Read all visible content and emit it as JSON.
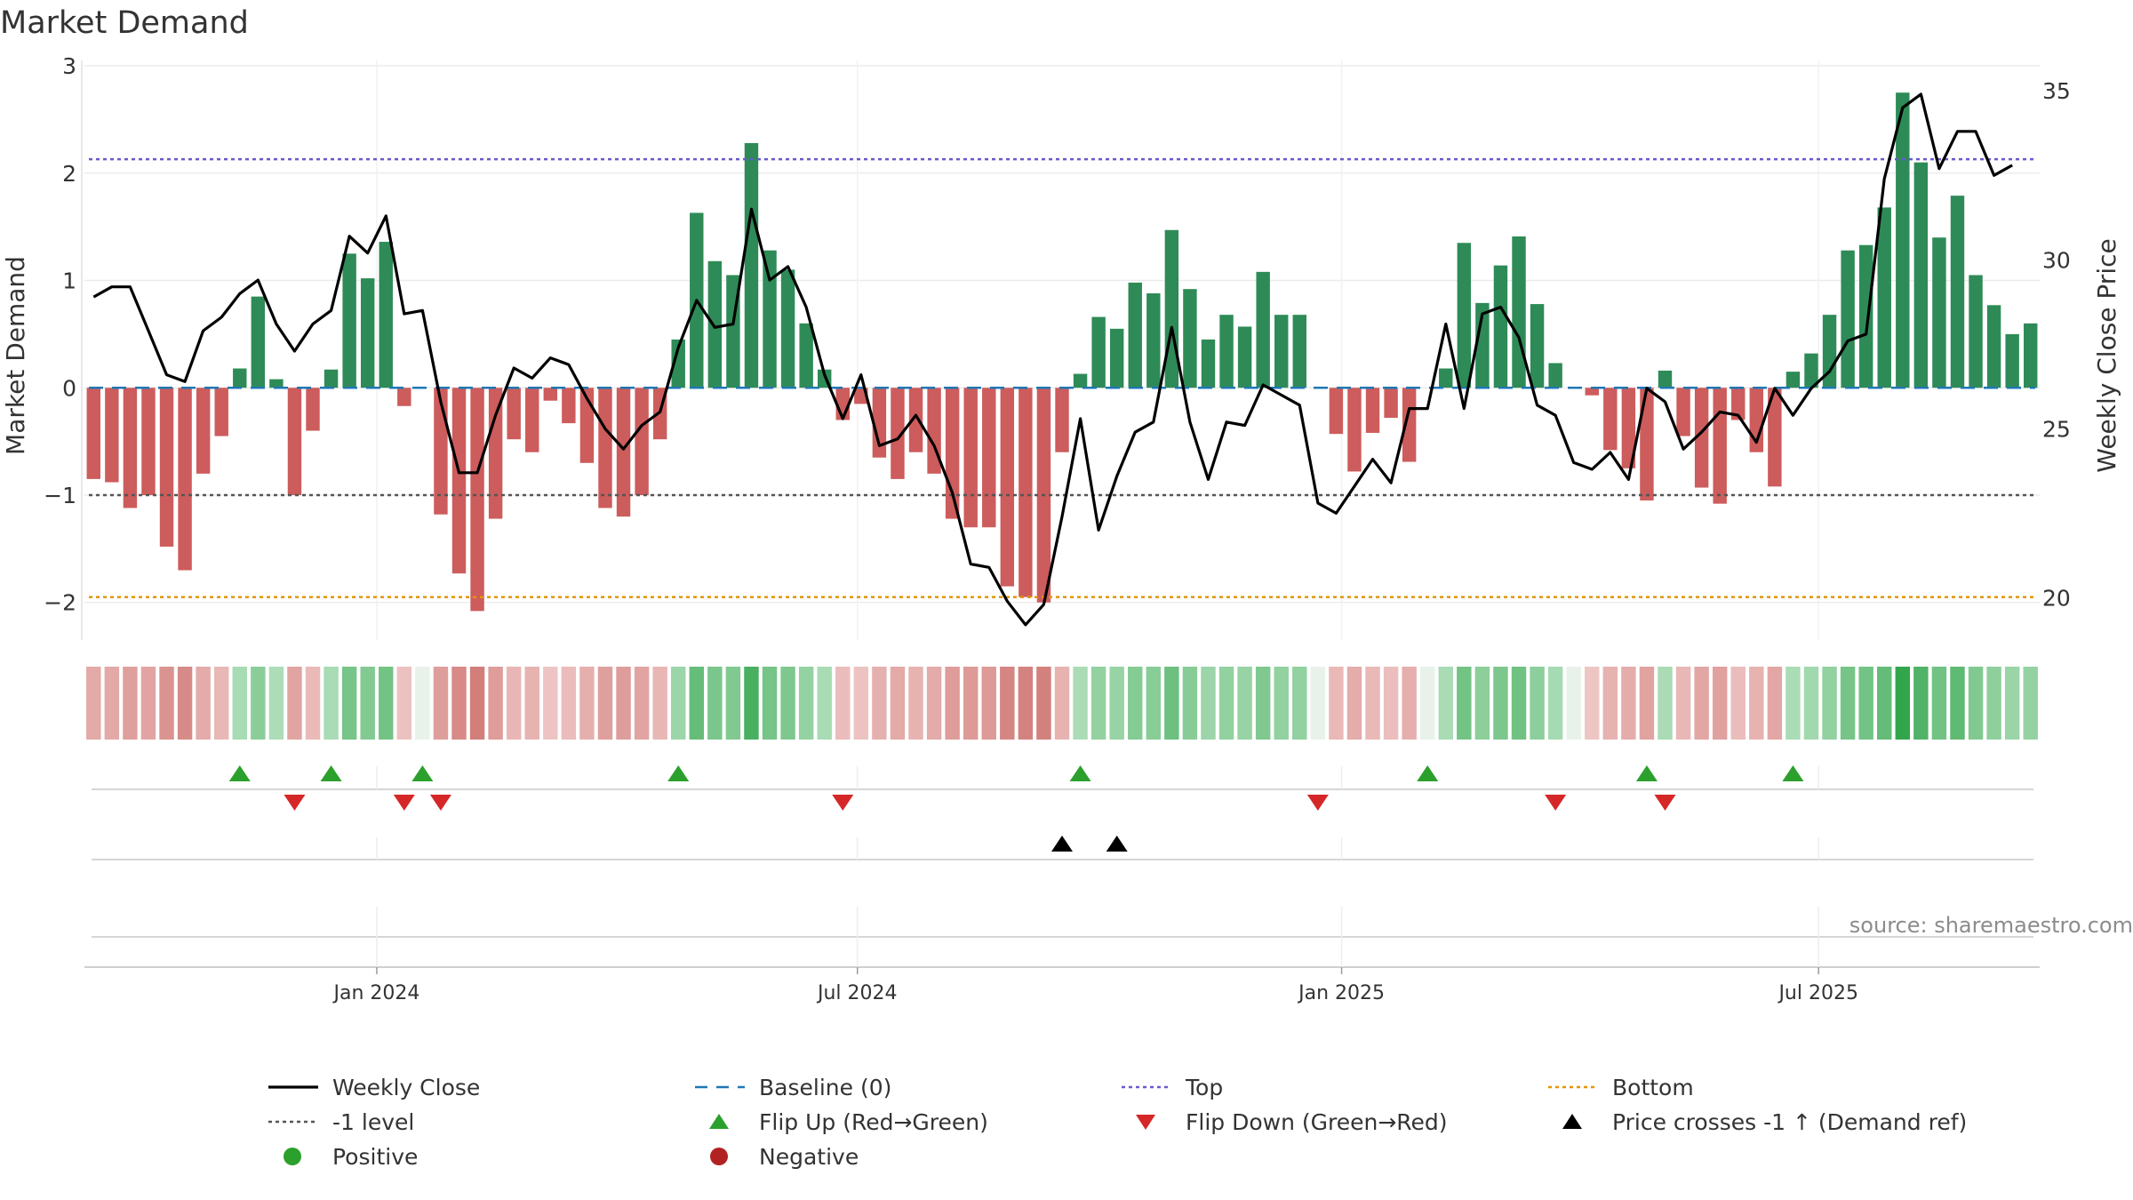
{
  "chart_data": {
    "type": "bar",
    "title": "Market Demand",
    "ylabel": "Market Demand",
    "y2label": "Weekly Close Price",
    "ylim": [
      -2.35,
      3.05
    ],
    "y2lim": [
      18.75,
      35.9
    ],
    "yticks": [
      -2,
      -1,
      0,
      1,
      2,
      3
    ],
    "yticklabels": [
      "−2",
      "−1",
      "0",
      "1",
      "2",
      "3"
    ],
    "y2ticks": [
      20,
      25,
      30,
      35
    ],
    "y2ticklabels": [
      "20",
      "25",
      "30",
      "35"
    ],
    "top_level": 2.13,
    "bottom_level": -1.95,
    "minus1_level": -1.0,
    "xticks": [
      {
        "label": "Jan 2024",
        "week": 15.5
      },
      {
        "label": "Jul 2024",
        "week": 41.8
      },
      {
        "label": "Jan 2025",
        "week": 68.3
      },
      {
        "label": "Jul 2025",
        "week": 94.4
      }
    ],
    "x_weeks_range": [
      -0.5,
      106.5
    ],
    "demand": [
      -0.85,
      -0.88,
      -1.12,
      -1.0,
      -1.48,
      -1.7,
      -0.8,
      -0.45,
      0.18,
      0.85,
      0.08,
      -1.0,
      -0.4,
      0.17,
      1.25,
      1.02,
      1.36,
      -0.17,
      0.0,
      -1.18,
      -1.73,
      -2.08,
      -1.22,
      -0.48,
      -0.6,
      -0.12,
      -0.33,
      -0.7,
      -1.12,
      -1.2,
      -1.0,
      -0.48,
      0.45,
      1.63,
      1.18,
      1.05,
      2.28,
      1.28,
      1.1,
      0.6,
      0.17,
      -0.3,
      -0.15,
      -0.65,
      -0.85,
      -0.6,
      -0.8,
      -1.22,
      -1.3,
      -1.3,
      -1.85,
      -1.95,
      -2.0,
      -0.6,
      0.13,
      0.66,
      0.55,
      0.98,
      0.88,
      1.47,
      0.92,
      0.45,
      0.68,
      0.57,
      1.08,
      0.68,
      0.68,
      0.0,
      -0.43,
      -0.78,
      -0.42,
      -0.28,
      -0.69,
      0.0,
      0.18,
      1.35,
      0.79,
      1.14,
      1.41,
      0.78,
      0.23,
      0.0,
      -0.07,
      -0.58,
      -0.75,
      -1.05,
      0.16,
      -0.45,
      -0.93,
      -1.08,
      -0.3,
      -0.6,
      -0.92,
      0.15,
      0.32,
      0.68,
      1.28,
      1.33,
      1.68,
      2.75,
      2.1,
      1.4,
      1.79,
      1.05,
      0.77,
      0.5,
      0.6
    ],
    "close": [
      28.9,
      29.2,
      29.2,
      27.9,
      26.6,
      26.4,
      27.9,
      28.3,
      29.0,
      29.4,
      28.1,
      27.3,
      28.1,
      28.5,
      30.7,
      30.2,
      31.3,
      28.4,
      28.5,
      25.8,
      23.7,
      23.7,
      25.4,
      26.8,
      26.5,
      27.1,
      26.9,
      25.9,
      25.0,
      24.4,
      25.1,
      25.5,
      27.4,
      28.8,
      28.0,
      28.1,
      31.5,
      29.4,
      29.8,
      28.6,
      26.6,
      25.3,
      26.6,
      24.5,
      24.7,
      25.4,
      24.5,
      23.1,
      21.0,
      20.9,
      19.9,
      19.2,
      19.8,
      22.4,
      25.3,
      22.0,
      23.6,
      24.9,
      25.2,
      28.0,
      25.2,
      23.5,
      25.2,
      25.1,
      26.3,
      26.0,
      25.7,
      22.8,
      22.5,
      23.3,
      24.1,
      23.4,
      25.6,
      25.6,
      28.1,
      25.6,
      28.4,
      28.6,
      27.7,
      25.7,
      25.4,
      24.0,
      23.8,
      24.3,
      23.5,
      26.2,
      25.8,
      24.4,
      24.9,
      25.5,
      25.4,
      24.6,
      26.2,
      25.4,
      26.2,
      26.7,
      27.6,
      27.8,
      32.4,
      34.5,
      34.9,
      32.7,
      33.8,
      33.8,
      32.5,
      32.8
    ],
    "flip_up_weeks": [
      8,
      13,
      18,
      32,
      54,
      73,
      85,
      93
    ],
    "flip_down_weeks": [
      11,
      17,
      19,
      41,
      67,
      80,
      86
    ],
    "price_cross_weeks": [
      53,
      56
    ],
    "legend": [
      {
        "label": "Weekly Close",
        "symbol": "solid-line",
        "color": "#000000"
      },
      {
        "label": "Baseline (0)",
        "symbol": "dash-line",
        "color": "#1f77b4"
      },
      {
        "label": "Top",
        "symbol": "dot-line",
        "color": "#6a5acd"
      },
      {
        "label": "Bottom",
        "symbol": "dot-line",
        "color": "#e69500"
      },
      {
        "label": "-1 level",
        "symbol": "dot-line",
        "color": "#555555"
      },
      {
        "label": "Flip Up (Red→Green)",
        "symbol": "triangle-up",
        "color": "#2ca02c"
      },
      {
        "label": "Flip Down (Green→Red)",
        "symbol": "triangle-down",
        "color": "#d62728"
      },
      {
        "label": "Price crosses -1 ↑ (Demand ref)",
        "symbol": "triangle-up",
        "color": "#000000"
      },
      {
        "label": "Positive",
        "symbol": "circle",
        "color": "#2ca02c"
      },
      {
        "label": "Negative",
        "symbol": "circle",
        "color": "#b22222"
      }
    ],
    "source": "source: sharemaestro.com",
    "colors": {
      "positive_bar": "#2e8b57",
      "negative_bar": "#cd5c5c",
      "close_line": "#000000",
      "baseline": "#1f77b4",
      "top": "#6a5acd",
      "bottom": "#e69500",
      "minus1": "#555555",
      "flip_up": "#2ca02c",
      "flip_down": "#d62728",
      "price_cross": "#000000"
    }
  }
}
